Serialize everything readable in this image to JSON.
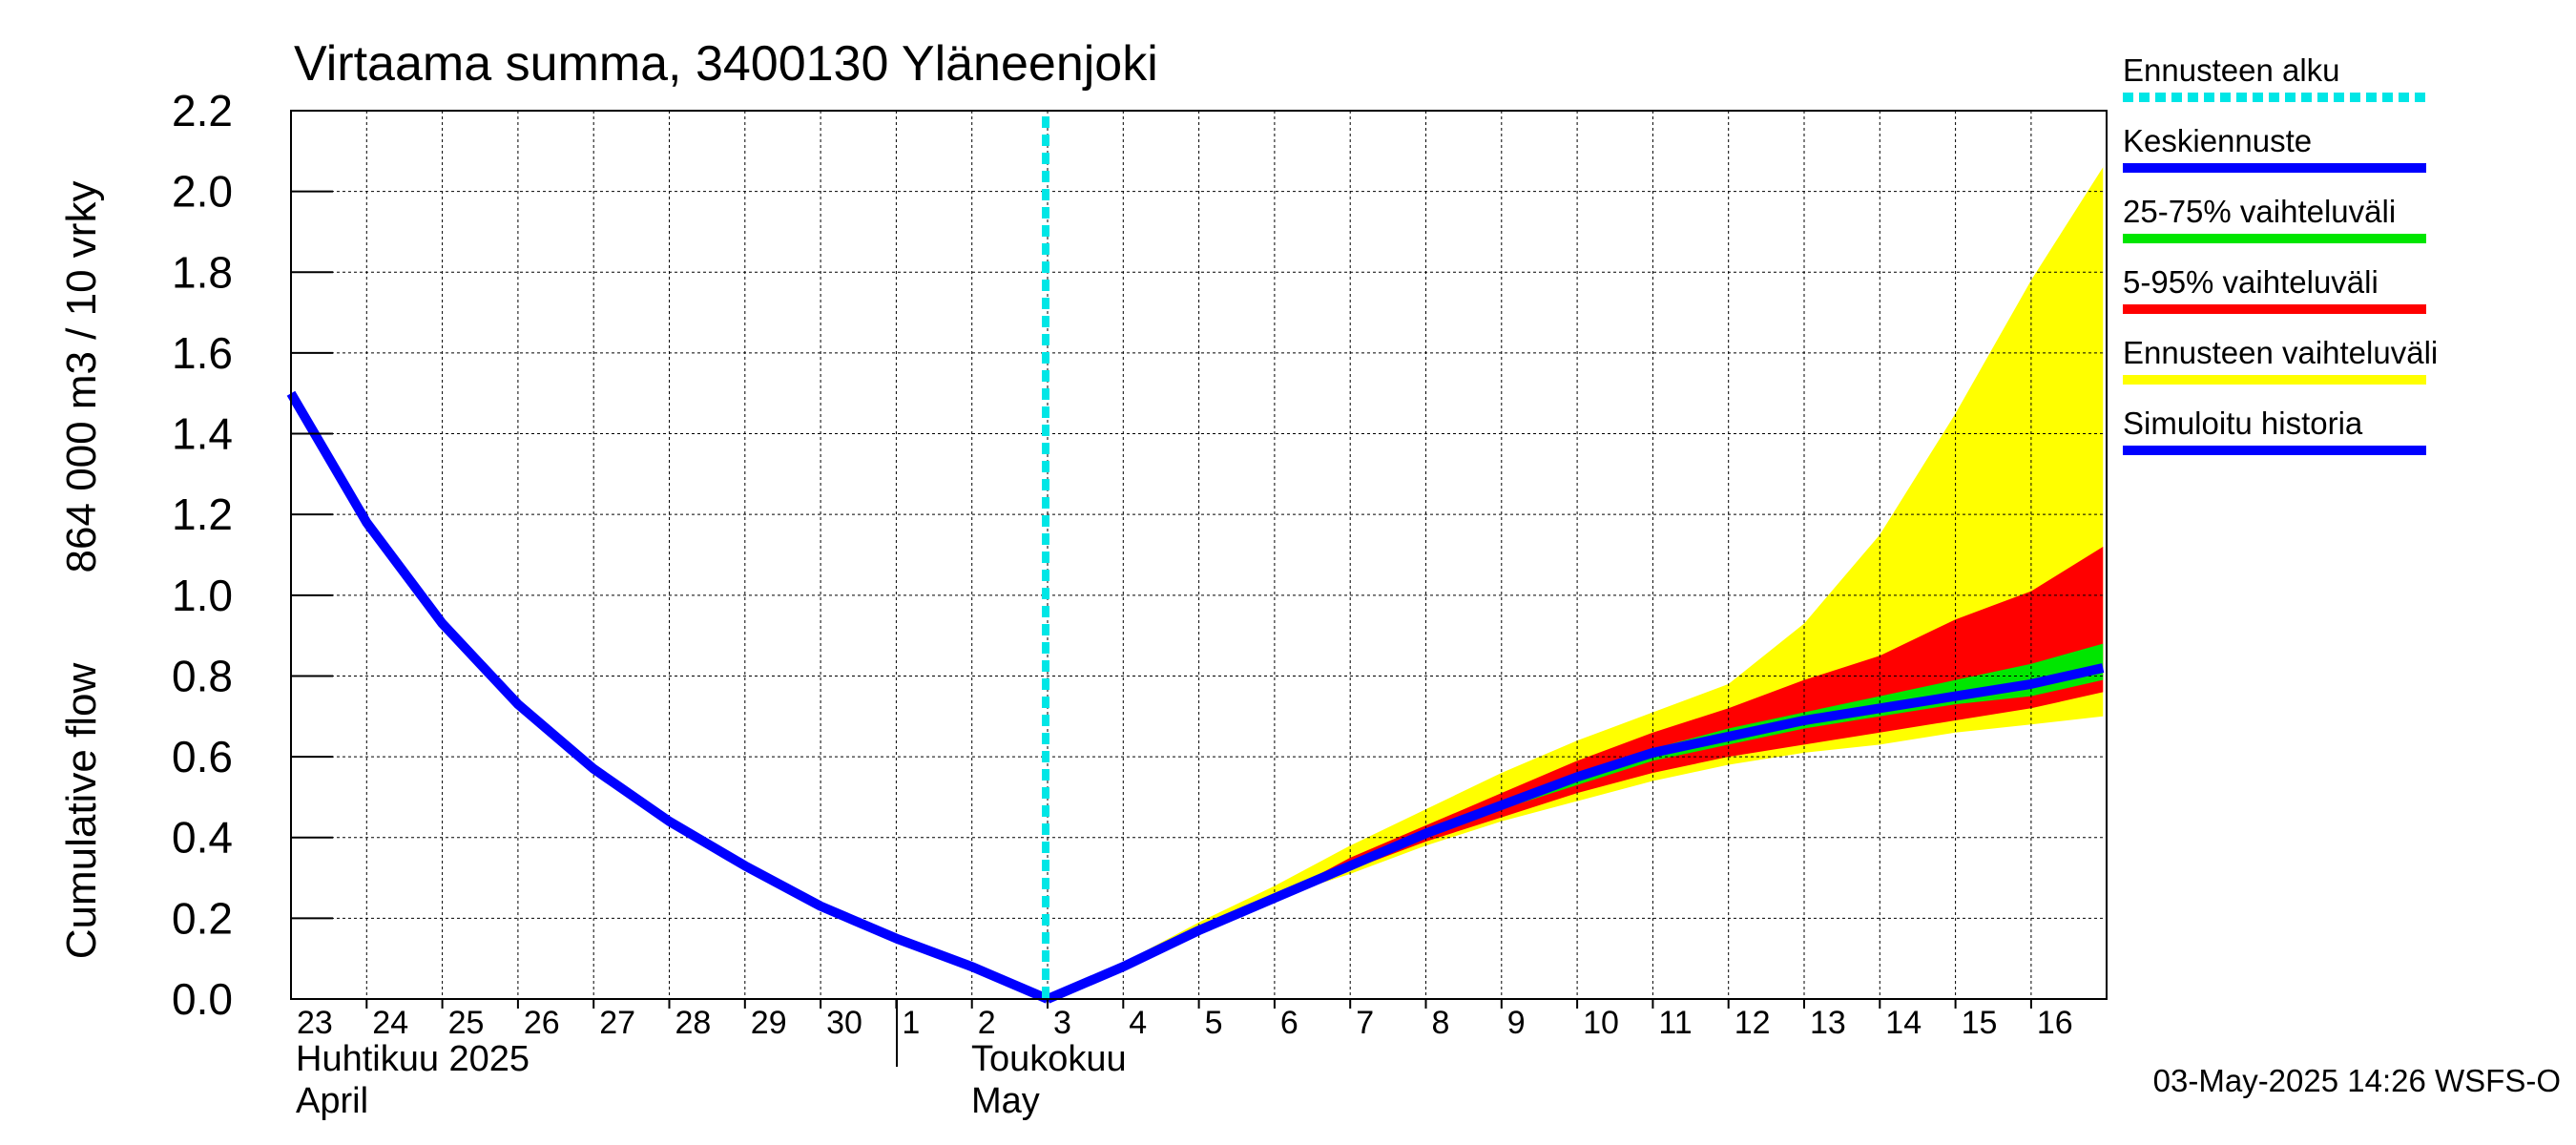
{
  "chart_data": {
    "type": "area",
    "title": "Virtaama summa, 3400130 Yläneenjoki",
    "ylabel_lines": [
      "Cumulative flow",
      "864 000 m3 / 10 vrky"
    ],
    "xlabel": "",
    "ylim": [
      0.0,
      2.2
    ],
    "yticks": [
      "0.0",
      "0.2",
      "0.4",
      "0.6",
      "0.8",
      "1.0",
      "1.2",
      "1.4",
      "1.6",
      "1.8",
      "2.0",
      "2.2"
    ],
    "x_day_labels": [
      "23",
      "24",
      "25",
      "26",
      "27",
      "28",
      "29",
      "30",
      "1",
      "2",
      "3",
      "4",
      "5",
      "6",
      "7",
      "8",
      "9",
      "10",
      "11",
      "12",
      "13",
      "14",
      "15",
      "16"
    ],
    "month_labels": {
      "april_fi": "Huhtikuu  2025",
      "april_en": "April",
      "may_fi": "Toukokuu",
      "may_en": "May"
    },
    "grid": true,
    "legend_position": "right",
    "forecast_start_day_index": 10,
    "colors": {
      "forecast_start": "#00e6e6",
      "mean_forecast": "#0000ff",
      "band_25_75": "#00e600",
      "band_5_95": "#ff0000",
      "band_full": "#ffff00",
      "simulated_history": "#0000ff"
    },
    "legend": [
      {
        "label": "Ennusteen alku",
        "color": "#00e6e6",
        "style": "dotted"
      },
      {
        "label": "Keskiennuste",
        "color": "#0000ff",
        "style": "solid"
      },
      {
        "label": "25-75% vaihteluväli",
        "color": "#00e600",
        "style": "solid"
      },
      {
        "label": "5-95% vaihteluväli",
        "color": "#ff0000",
        "style": "solid"
      },
      {
        "label": "Ennusteen vaihteluväli",
        "color": "#ffff00",
        "style": "solid"
      },
      {
        "label": "Simuloitu historia",
        "color": "#0000ff",
        "style": "solid"
      }
    ],
    "series": [
      {
        "name": "Simuloitu historia",
        "x": [
          0,
          1,
          2,
          3,
          4,
          5,
          6,
          7,
          8,
          9,
          10
        ],
        "values": [
          1.5,
          1.18,
          0.93,
          0.73,
          0.57,
          0.44,
          0.33,
          0.23,
          0.15,
          0.08,
          0.0
        ]
      },
      {
        "name": "Keskiennuste",
        "x": [
          10,
          11,
          12,
          13,
          14,
          15,
          16,
          17,
          18,
          19,
          20,
          21,
          22,
          23,
          23.95
        ],
        "values": [
          0.0,
          0.08,
          0.17,
          0.25,
          0.33,
          0.41,
          0.48,
          0.55,
          0.61,
          0.65,
          0.69,
          0.72,
          0.75,
          0.78,
          0.82
        ]
      },
      {
        "name": "25-75% vaihteluväli",
        "x": [
          10,
          11,
          12,
          13,
          14,
          15,
          16,
          17,
          18,
          19,
          20,
          21,
          22,
          23,
          23.95
        ],
        "low": [
          0.0,
          0.08,
          0.17,
          0.25,
          0.33,
          0.4,
          0.47,
          0.53,
          0.59,
          0.63,
          0.67,
          0.7,
          0.73,
          0.75,
          0.79
        ],
        "high": [
          0.0,
          0.08,
          0.17,
          0.25,
          0.34,
          0.42,
          0.49,
          0.56,
          0.62,
          0.67,
          0.71,
          0.75,
          0.79,
          0.83,
          0.88
        ]
      },
      {
        "name": "5-95% vaihteluväli",
        "x": [
          10,
          11,
          12,
          13,
          14,
          15,
          16,
          17,
          18,
          19,
          20,
          21,
          22,
          23,
          23.95
        ],
        "low": [
          0.0,
          0.08,
          0.17,
          0.25,
          0.32,
          0.39,
          0.45,
          0.51,
          0.56,
          0.6,
          0.63,
          0.66,
          0.69,
          0.72,
          0.76
        ],
        "high": [
          0.0,
          0.08,
          0.17,
          0.25,
          0.35,
          0.43,
          0.51,
          0.59,
          0.66,
          0.72,
          0.79,
          0.85,
          0.94,
          1.01,
          1.12
        ]
      },
      {
        "name": "Ennusteen vaihteluväli",
        "x": [
          10,
          11,
          12,
          13,
          14,
          15,
          16,
          17,
          18,
          19,
          20,
          21,
          22,
          23,
          23.95
        ],
        "low": [
          0.0,
          0.08,
          0.17,
          0.25,
          0.31,
          0.38,
          0.44,
          0.49,
          0.54,
          0.58,
          0.61,
          0.63,
          0.66,
          0.68,
          0.7
        ],
        "high": [
          0.0,
          0.09,
          0.19,
          0.28,
          0.38,
          0.47,
          0.56,
          0.64,
          0.71,
          0.78,
          0.93,
          1.15,
          1.45,
          1.78,
          2.06
        ]
      }
    ]
  },
  "footer": {
    "timestamp": "03-May-2025 14:26 WSFS-O"
  }
}
